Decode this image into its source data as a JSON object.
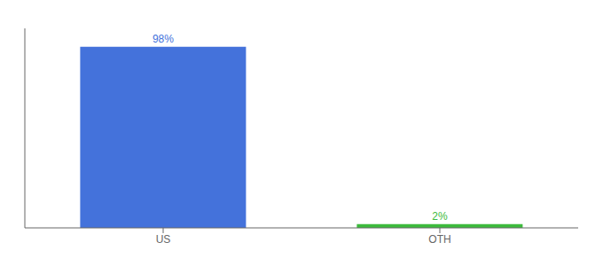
{
  "chart_data": {
    "type": "bar",
    "categories": [
      "US",
      "OTH"
    ],
    "values": [
      98,
      2
    ],
    "value_labels": [
      "98%",
      "2%"
    ],
    "colors": [
      "#4472db",
      "#3dbb3d"
    ],
    "ylim": [
      0,
      108
    ],
    "yticks": [],
    "grid": false,
    "data_labels": true,
    "tick_labels": "x"
  }
}
